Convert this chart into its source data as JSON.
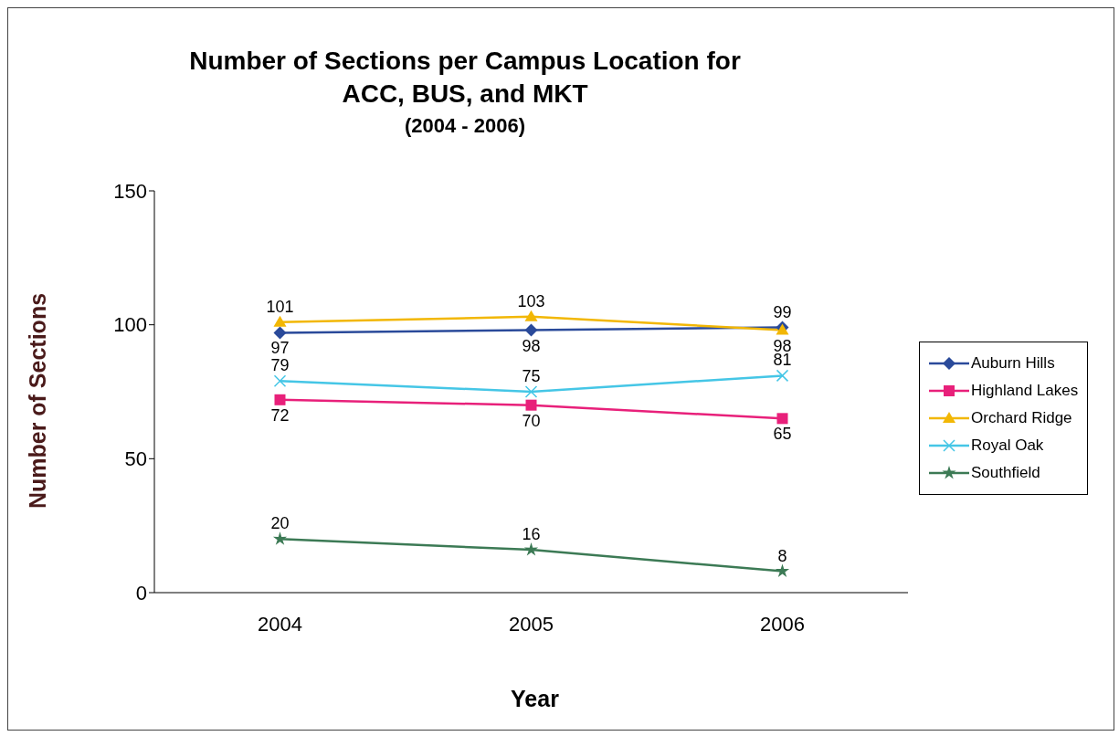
{
  "chart_data": {
    "type": "line",
    "title": "Number of Sections per Campus Location for ACC, BUS, and MKT",
    "subtitle": "(2004 - 2006)",
    "xlabel": "Year",
    "ylabel": "Number of Sections",
    "categories": [
      "2004",
      "2005",
      "2006"
    ],
    "series": [
      {
        "name": "Auburn Hills",
        "color": "#2a4a9a",
        "marker": "diamond",
        "values": [
          97,
          98,
          99
        ]
      },
      {
        "name": "Highland Lakes",
        "color": "#e8207a",
        "marker": "square",
        "values": [
          72,
          70,
          65
        ]
      },
      {
        "name": "Orchard Ridge",
        "color": "#f2b705",
        "marker": "triangle",
        "values": [
          101,
          103,
          98
        ]
      },
      {
        "name": "Royal Oak",
        "color": "#45c6e6",
        "marker": "cross",
        "values": [
          79,
          75,
          81
        ]
      },
      {
        "name": "Southfield",
        "color": "#3c7a55",
        "marker": "star",
        "values": [
          20,
          16,
          8
        ]
      }
    ],
    "ylim": [
      0,
      150
    ],
    "yticks": [
      0,
      50,
      100,
      150
    ],
    "grid": false,
    "legend": "right",
    "data_labels": true
  }
}
